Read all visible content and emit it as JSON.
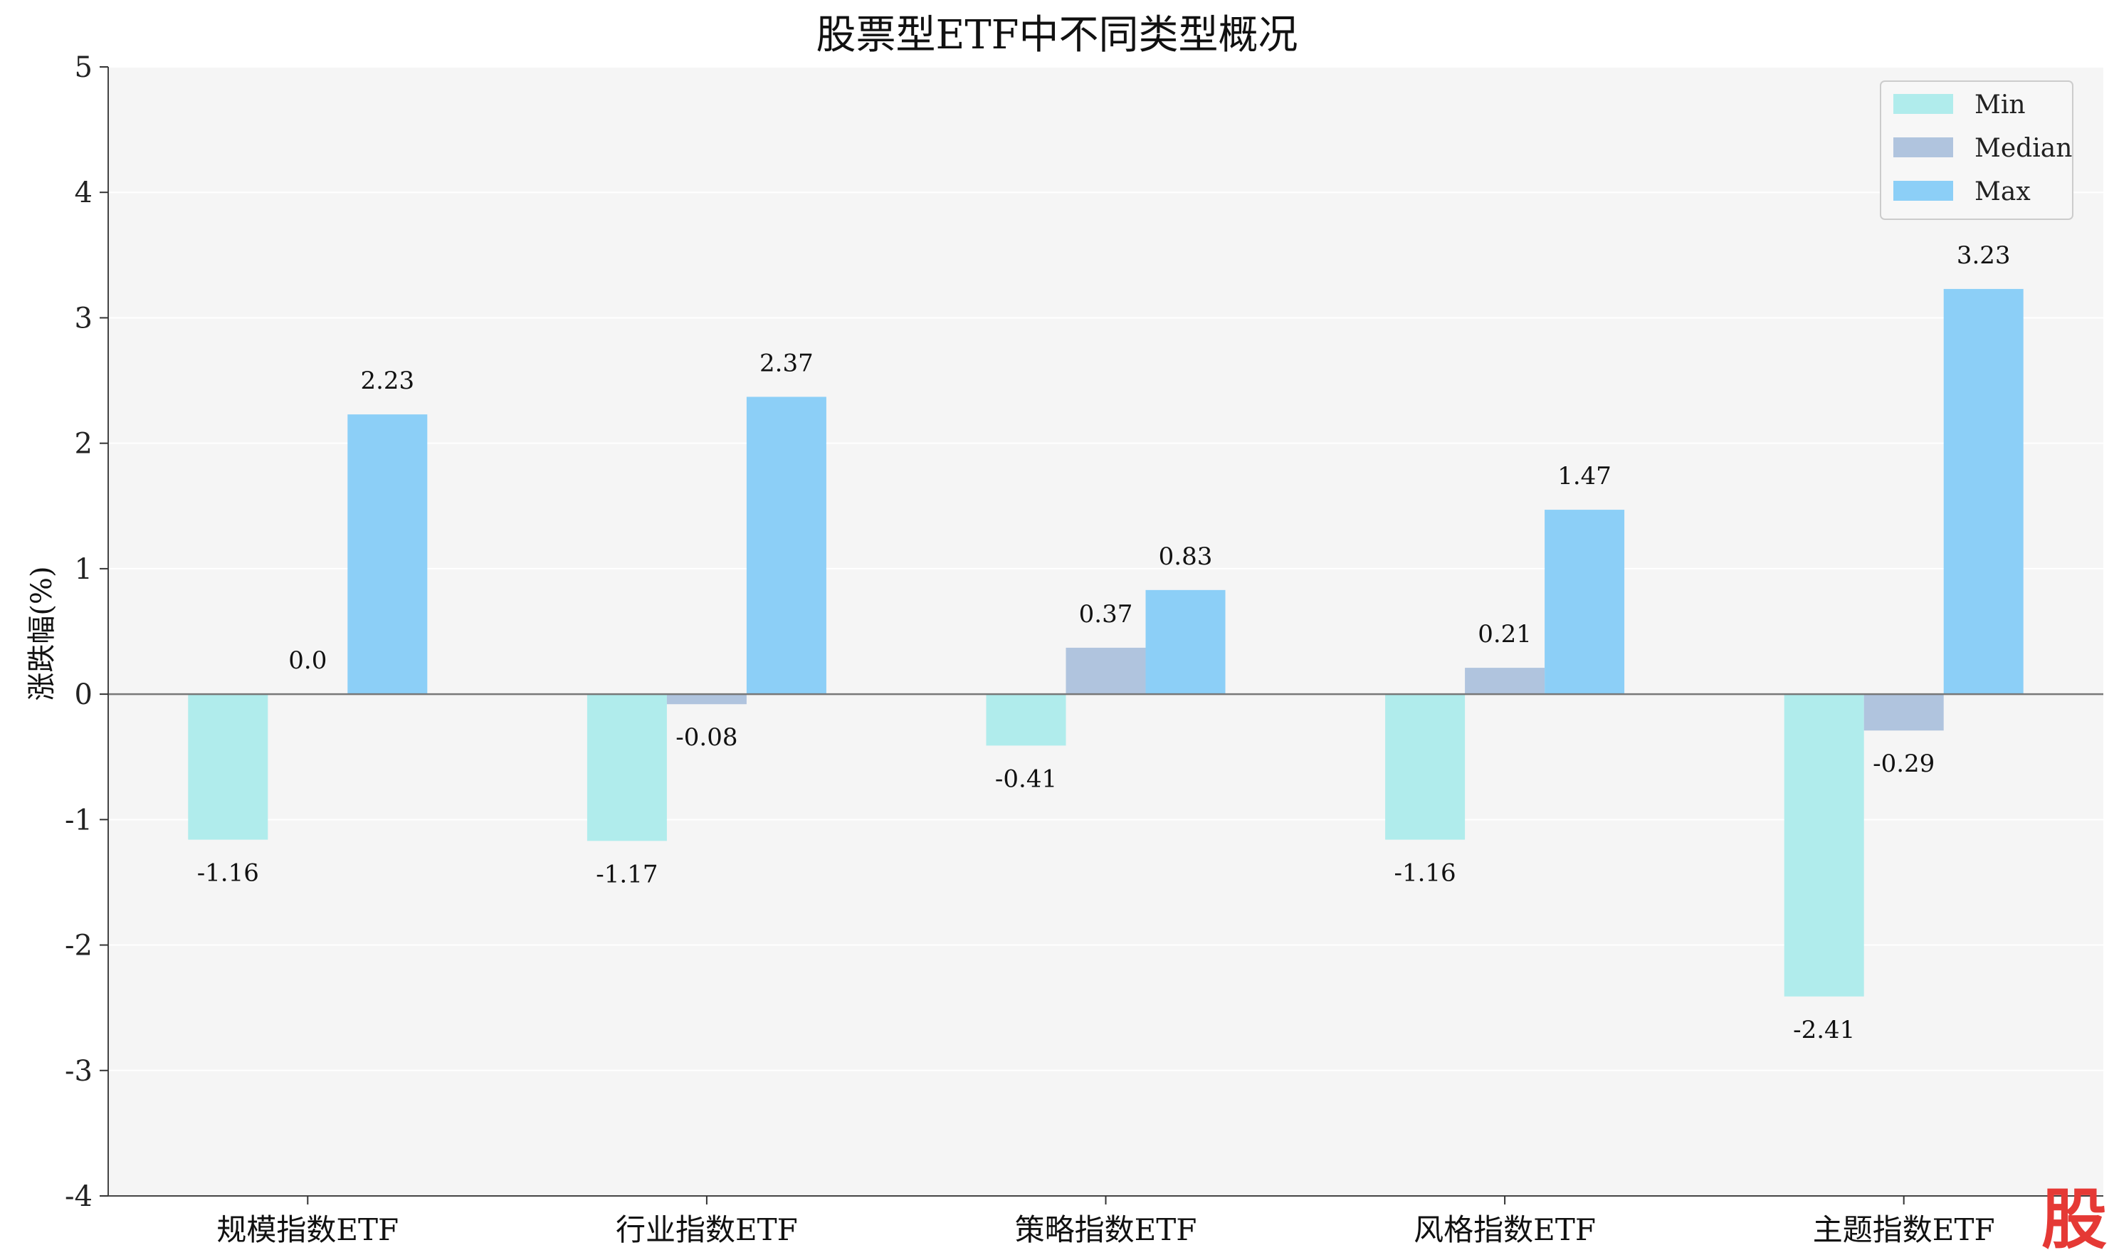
{
  "chart_data": {
    "type": "bar",
    "title": "股票型ETF中不同类型概况",
    "xlabel": "",
    "ylabel": "涨跌幅(%)",
    "ylim": [
      -4,
      5
    ],
    "yticks": [
      "-4",
      "-3",
      "-2",
      "-1",
      "0",
      "1",
      "2",
      "3",
      "4",
      "5"
    ],
    "categories": [
      "规模指数ETF",
      "行业指数ETF",
      "策略指数ETF",
      "风格指数ETF",
      "主题指数ETF"
    ],
    "series": [
      {
        "name": "Min",
        "color": "#b0ecec",
        "values": [
          -1.16,
          -1.17,
          -0.41,
          -1.16,
          -2.41
        ],
        "labels": [
          "-1.16",
          "-1.17",
          "-0.41",
          "-1.16",
          "-2.41"
        ]
      },
      {
        "name": "Median",
        "color": "#b0c4de",
        "values": [
          0.0,
          -0.08,
          0.37,
          0.21,
          -0.29
        ],
        "labels": [
          "0.0",
          "-0.08",
          "0.37",
          "0.21",
          "-0.29"
        ]
      },
      {
        "name": "Max",
        "color": "#8ccff7",
        "values": [
          2.23,
          2.37,
          0.83,
          1.47,
          3.23
        ],
        "labels": [
          "2.23",
          "2.37",
          "0.83",
          "1.47",
          "3.23"
        ]
      }
    ],
    "grid": true,
    "legend": "top-right"
  },
  "watermark": "股"
}
